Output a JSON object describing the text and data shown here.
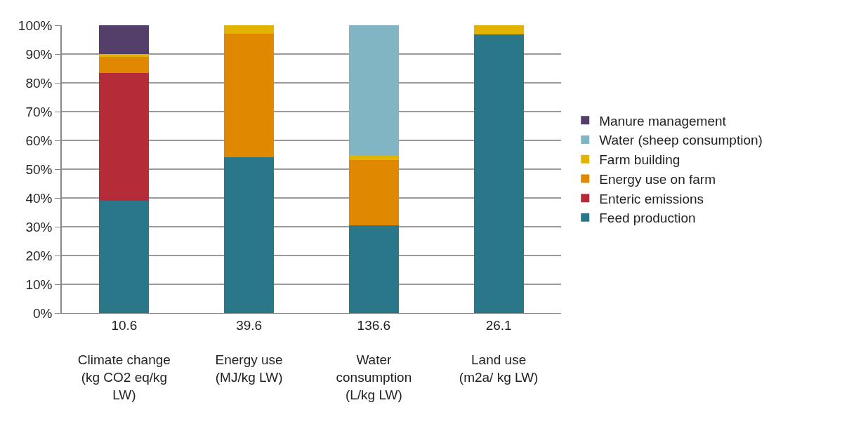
{
  "chart_data": {
    "type": "bar",
    "stacked": true,
    "categories": [
      "10.6\n\nClimate change\n(kg CO2 eq/kg\nLW)",
      "39.6\n\nEnergy use\n(MJ/kg LW)",
      "136.6\n\nWater\nconsumption\n(L/kg LW)",
      "26.1\n\nLand use\n(m2a/ kg LW)"
    ],
    "series": [
      {
        "name": "Feed production",
        "color": "#2a7789",
        "values": [
          39.1,
          54.1,
          30.6,
          96.9
        ]
      },
      {
        "name": "Enteric emissions",
        "color": "#b52b38",
        "values": [
          44.2,
          0,
          0,
          0
        ]
      },
      {
        "name": "Energy use on farm",
        "color": "#e08800",
        "values": [
          5.7,
          43.0,
          22.5,
          0
        ]
      },
      {
        "name": "Farm building",
        "color": "#e2b400",
        "values": [
          1.1,
          2.9,
          1.8,
          3.1
        ]
      },
      {
        "name": "Water (sheep consumption)",
        "color": "#82b5c3",
        "values": [
          0,
          0,
          45.1,
          0
        ]
      },
      {
        "name": "Manure management",
        "color": "#533f6a",
        "values": [
          9.9,
          0,
          0,
          0
        ]
      }
    ],
    "ylim": [
      0,
      100
    ],
    "yticks": [
      {
        "value": 0,
        "label": "0%"
      },
      {
        "value": 10,
        "label": "10%"
      },
      {
        "value": 20,
        "label": "20%"
      },
      {
        "value": 30,
        "label": "30%"
      },
      {
        "value": 40,
        "label": "40%"
      },
      {
        "value": 50,
        "label": "50%"
      },
      {
        "value": 60,
        "label": "60%"
      },
      {
        "value": 70,
        "label": "70%"
      },
      {
        "value": 80,
        "label": "80%"
      },
      {
        "value": 90,
        "label": "90%"
      },
      {
        "value": 100,
        "label": "100%"
      }
    ],
    "grid": "y",
    "legend": "right"
  }
}
